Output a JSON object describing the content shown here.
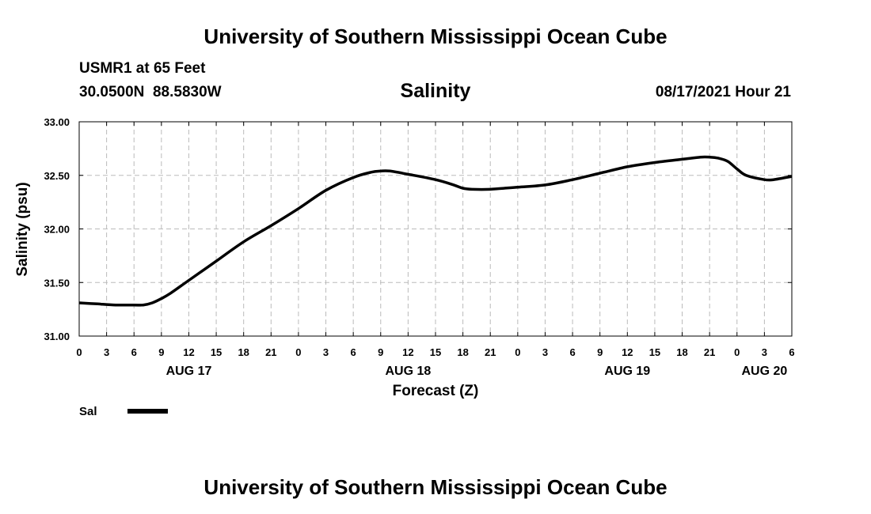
{
  "header": {
    "top_title": "University of Southern Mississippi Ocean Cube",
    "station": "USMR1 at 65 Feet",
    "coords": "30.0500N  88.5830W",
    "variable": "Salinity",
    "datetime": "08/17/2021 Hour 21",
    "bottom_title": "University of Southern Mississippi Ocean Cube"
  },
  "legend": {
    "label": "Sal",
    "color": "#000000"
  },
  "chart_data": {
    "type": "line",
    "title": "Salinity",
    "xlabel": "Forecast (Z)",
    "ylabel": "Salinity (psu)",
    "ylim": [
      31.0,
      33.0
    ],
    "xlim_hours": [
      0,
      78
    ],
    "grid": true,
    "y_ticks": [
      "31.00",
      "31.50",
      "32.00",
      "32.50",
      "33.00"
    ],
    "x_ticks": [
      {
        "h": 0,
        "label": "0"
      },
      {
        "h": 3,
        "label": "3"
      },
      {
        "h": 6,
        "label": "6"
      },
      {
        "h": 9,
        "label": "9"
      },
      {
        "h": 12,
        "label": "12"
      },
      {
        "h": 15,
        "label": "15"
      },
      {
        "h": 18,
        "label": "18"
      },
      {
        "h": 21,
        "label": "21"
      },
      {
        "h": 24,
        "label": "0"
      },
      {
        "h": 27,
        "label": "3"
      },
      {
        "h": 30,
        "label": "6"
      },
      {
        "h": 33,
        "label": "9"
      },
      {
        "h": 36,
        "label": "12"
      },
      {
        "h": 39,
        "label": "15"
      },
      {
        "h": 42,
        "label": "18"
      },
      {
        "h": 45,
        "label": "21"
      },
      {
        "h": 48,
        "label": "0"
      },
      {
        "h": 51,
        "label": "3"
      },
      {
        "h": 54,
        "label": "6"
      },
      {
        "h": 57,
        "label": "9"
      },
      {
        "h": 60,
        "label": "12"
      },
      {
        "h": 63,
        "label": "15"
      },
      {
        "h": 66,
        "label": "18"
      },
      {
        "h": 69,
        "label": "21"
      },
      {
        "h": 72,
        "label": "0"
      },
      {
        "h": 75,
        "label": "3"
      },
      {
        "h": 78,
        "label": "6"
      }
    ],
    "date_labels": [
      {
        "h": 12,
        "label": "AUG 17"
      },
      {
        "h": 36,
        "label": "AUG 18"
      },
      {
        "h": 60,
        "label": "AUG 19"
      },
      {
        "h": 75,
        "label": "AUG 20"
      }
    ],
    "series": [
      {
        "name": "Sal",
        "x": [
          0,
          2,
          4,
          6,
          7,
          8,
          9,
          10,
          12,
          15,
          18,
          21,
          24,
          27,
          30,
          32,
          33,
          34,
          36,
          39,
          41,
          42,
          43,
          45,
          48,
          51,
          54,
          57,
          60,
          63,
          66,
          68,
          69,
          70,
          71,
          72,
          73,
          75,
          76,
          78
        ],
        "y": [
          31.31,
          31.3,
          31.29,
          31.29,
          31.29,
          31.31,
          31.35,
          31.4,
          31.52,
          31.7,
          31.88,
          32.03,
          32.19,
          32.36,
          32.48,
          32.53,
          32.54,
          32.54,
          32.51,
          32.46,
          32.41,
          32.38,
          32.37,
          32.37,
          32.39,
          32.41,
          32.46,
          32.52,
          32.58,
          32.62,
          32.65,
          32.67,
          32.67,
          32.66,
          32.63,
          32.56,
          32.5,
          32.46,
          32.46,
          32.49
        ]
      }
    ]
  }
}
